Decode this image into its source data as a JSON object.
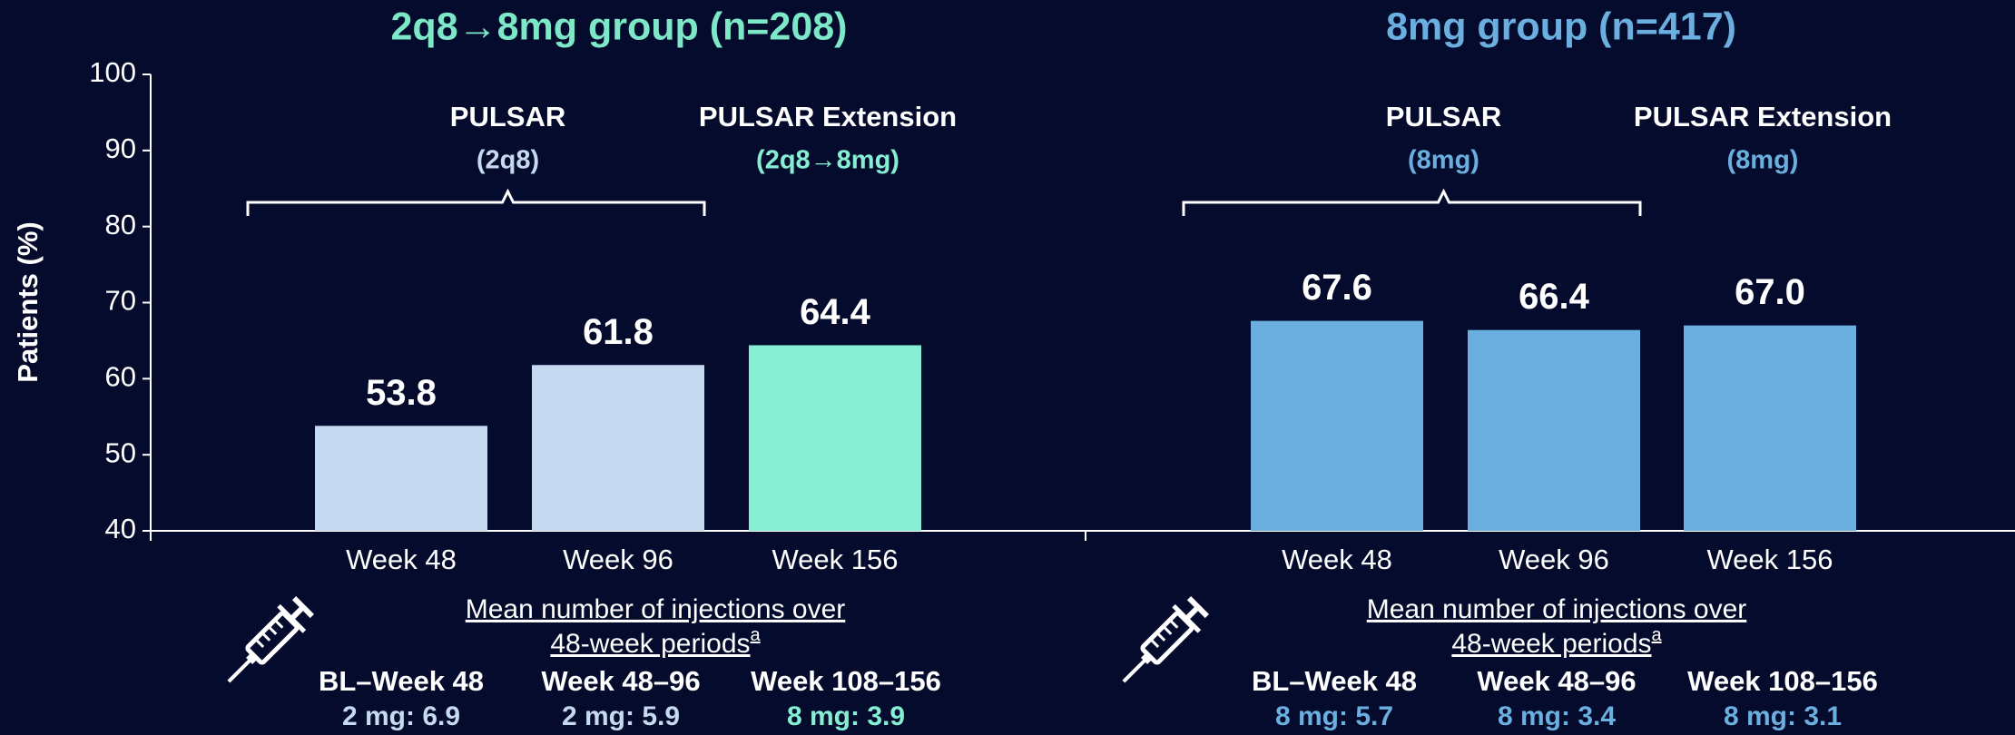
{
  "chart_data": {
    "type": "bar",
    "y_label": "Patients (%)",
    "ylim": [
      40,
      100
    ],
    "yticks": [
      40,
      50,
      60,
      70,
      80,
      90,
      100
    ],
    "groups": [
      {
        "title": "2q8→8mg group (n=208)",
        "title_color": "#7de8c8",
        "categories": [
          "Week 48",
          "Week 96",
          "Week 156"
        ],
        "values": [
          53.8,
          61.8,
          64.4
        ],
        "value_labels": [
          "53.8",
          "61.8",
          "64.4"
        ],
        "colors": [
          "#c5d9f0",
          "#c5d9f0",
          "#86eed2"
        ],
        "phases": [
          {
            "name": "PULSAR",
            "sublabel": "(2q8)",
            "color": "#c5d9f0"
          },
          {
            "name": "PULSAR Extension",
            "sublabel": "(2q8→8mg)",
            "color": "#86eed2"
          }
        ],
        "injections": {
          "title_lines": [
            "Mean number of injections over",
            "48-week periods"
          ],
          "footnote": "a",
          "periods": [
            {
              "label": "BL–Week 48",
              "value": "2 mg: 6.9",
              "color": "#c5d9f0"
            },
            {
              "label": "Week 48–96",
              "value": "2 mg: 5.9",
              "color": "#c5d9f0"
            },
            {
              "label": "Week 108–156",
              "value": "8 mg: 3.9",
              "color": "#86eed2"
            }
          ]
        }
      },
      {
        "title": "8mg group (n=417)",
        "title_color": "#6aafe0",
        "categories": [
          "Week 48",
          "Week 96",
          "Week 156"
        ],
        "values": [
          67.6,
          66.4,
          67.0
        ],
        "value_labels": [
          "67.6",
          "66.4",
          "67.0"
        ],
        "colors": [
          "#6aafdf",
          "#6aafdf",
          "#6aafdf"
        ],
        "phases": [
          {
            "name": "PULSAR",
            "sublabel": "(8mg)",
            "color": "#6aafdf"
          },
          {
            "name": "PULSAR Extension",
            "sublabel": "(8mg)",
            "color": "#6aafdf"
          }
        ],
        "injections": {
          "title_lines": [
            "Mean number of injections over",
            "48-week periods"
          ],
          "footnote": "a",
          "periods": [
            {
              "label": "BL–Week 48",
              "value": "8 mg: 5.7",
              "color": "#6aafdf"
            },
            {
              "label": "Week 48–96",
              "value": "8 mg: 3.4",
              "color": "#6aafdf"
            },
            {
              "label": "Week 108–156",
              "value": "8 mg: 3.1",
              "color": "#6aafdf"
            }
          ]
        }
      }
    ]
  }
}
